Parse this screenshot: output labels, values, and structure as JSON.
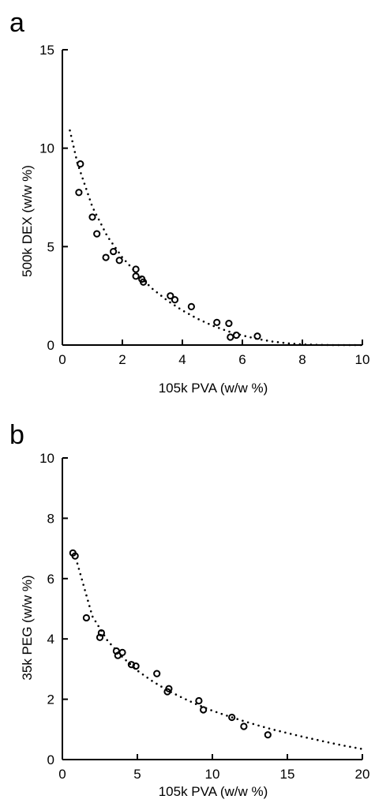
{
  "chart_data": [
    {
      "type": "scatter",
      "panel_label": "a",
      "title": "",
      "xlabel": "105k PVA (w/w %)",
      "ylabel": "500k DEX (w/w %)",
      "xlim": [
        0,
        10
      ],
      "ylim": [
        0,
        15
      ],
      "xticks": [
        0,
        2,
        4,
        6,
        8,
        10
      ],
      "yticks": [
        0,
        5,
        10,
        15
      ],
      "grid": false,
      "series": [
        {
          "kind": "points",
          "marker": "open-circle",
          "x": [
            0.6,
            0.55,
            1.0,
            1.15,
            1.45,
            1.7,
            1.9,
            2.45,
            2.45,
            2.65,
            2.7,
            3.6,
            3.75,
            4.3,
            5.15,
            5.55,
            5.6,
            5.8,
            6.5
          ],
          "y": [
            9.2,
            7.75,
            6.5,
            5.65,
            4.45,
            4.75,
            4.3,
            3.85,
            3.5,
            3.35,
            3.2,
            2.5,
            2.3,
            1.95,
            1.15,
            1.1,
            0.4,
            0.5,
            0.45
          ]
        },
        {
          "kind": "fit",
          "style": "dotted",
          "x": [
            0.25,
            0.5,
            1,
            1.5,
            2,
            2.5,
            3,
            3.5,
            4,
            4.5,
            5,
            5.5,
            6,
            6.5,
            7,
            7.5,
            8,
            8.5,
            9,
            9.5,
            10
          ],
          "y": [
            10.9,
            9.25,
            7.02,
            5.52,
            4.45,
            3.6,
            2.86,
            2.26,
            1.76,
            1.34,
            0.99,
            0.71,
            0.49,
            0.31,
            0.18,
            0.09,
            0.035,
            0.01,
            0.0,
            0.0,
            0.0
          ]
        }
      ]
    },
    {
      "type": "scatter",
      "panel_label": "b",
      "title": "",
      "xlabel": "105k PVA (w/w %)",
      "ylabel": "35k PEG (w/w %)",
      "xlim": [
        0,
        20
      ],
      "ylim": [
        0,
        10
      ],
      "xticks": [
        0,
        5,
        10,
        15,
        20
      ],
      "yticks": [
        0,
        2,
        4,
        6,
        8,
        10
      ],
      "grid": false,
      "series": [
        {
          "kind": "points",
          "marker": "open-circle",
          "x": [
            0.7,
            0.85,
            1.6,
            2.5,
            2.6,
            3.6,
            3.7,
            4.0,
            4.6,
            4.9,
            6.3,
            7.0,
            7.1,
            9.1,
            9.4,
            11.3,
            12.1,
            13.7
          ],
          "y": [
            6.85,
            6.75,
            4.7,
            4.05,
            4.2,
            3.6,
            3.45,
            3.55,
            3.15,
            3.1,
            2.85,
            2.25,
            2.35,
            1.95,
            1.65,
            1.4,
            1.1,
            0.82
          ]
        },
        {
          "kind": "fit",
          "style": "dotted",
          "x": [
            1,
            2,
            3,
            4,
            5,
            6,
            7,
            8,
            9,
            10,
            11,
            12,
            13,
            14,
            15,
            16,
            17,
            18,
            19,
            20
          ],
          "y": [
            6.5,
            4.75,
            3.95,
            3.4,
            2.95,
            2.6,
            2.3,
            2.05,
            1.82,
            1.62,
            1.45,
            1.29,
            1.14,
            1.0,
            0.88,
            0.76,
            0.65,
            0.54,
            0.44,
            0.35
          ]
        }
      ]
    }
  ]
}
